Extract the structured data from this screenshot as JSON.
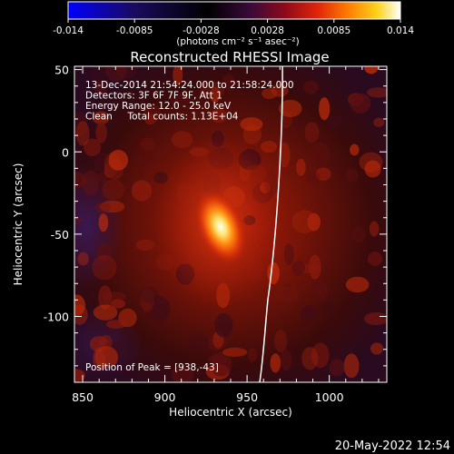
{
  "colorbar": {
    "ticks": [
      "-0.014",
      "-0.0085",
      "-0.0028",
      "0.0028",
      "0.0085",
      "0.014"
    ],
    "units": "(photons cm⁻² s⁻¹ asec⁻²)",
    "range": [
      -0.014,
      0.014
    ],
    "colors": [
      "#0000ff",
      "#1a0b5e",
      "#000000",
      "#3b0a3a",
      "#8b0a1a",
      "#e0240a",
      "#ff7a00",
      "#ffd21a",
      "#ffffff"
    ]
  },
  "chart_data": {
    "type": "heatmap",
    "title": "Reconstructed RHESSI Image",
    "xlabel": "Heliocentric X (arcsec)",
    "ylabel": "Heliocentric Y (arcsec)",
    "xlim": [
      845,
      1035
    ],
    "ylim": [
      -140,
      52
    ],
    "xticks": [
      850,
      900,
      950,
      1000
    ],
    "yticks": [
      50,
      0,
      -50,
      -100
    ],
    "info_lines": [
      "13-Dec-2014 21:54:24.000 to 21:58:24.000",
      "Detectors: 3F 6F 7F 9F, Att 1",
      "Energy Range: 12.0 - 25.0 keV",
      "Clean     Total counts: 1.13E+04"
    ],
    "peak_label": "Position of Peak = [938,-43]",
    "peak": [
      938,
      -43
    ],
    "limb_visible": true
  },
  "footer": {
    "timestamp": "20-May-2022 12:54"
  }
}
